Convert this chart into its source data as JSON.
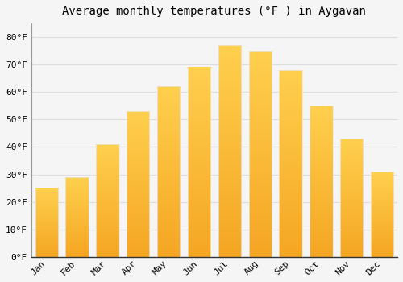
{
  "title": "Average monthly temperatures (°F ) in Aygavan",
  "months": [
    "Jan",
    "Feb",
    "Mar",
    "Apr",
    "May",
    "Jun",
    "Jul",
    "Aug",
    "Sep",
    "Oct",
    "Nov",
    "Dec"
  ],
  "values": [
    25,
    29,
    41,
    53,
    62,
    69,
    77,
    75,
    68,
    55,
    43,
    31
  ],
  "bar_color_bottom": "#F5A623",
  "bar_color_top": "#FFD04E",
  "bar_edge_color": "#E8E8E8",
  "background_color": "#F5F5F5",
  "plot_bg_color": "#F5F5F5",
  "grid_color": "#DDDDDD",
  "ylim": [
    0,
    85
  ],
  "yticks": [
    0,
    10,
    20,
    30,
    40,
    50,
    60,
    70,
    80
  ],
  "ytick_labels": [
    "0°F",
    "10°F",
    "20°F",
    "30°F",
    "40°F",
    "50°F",
    "60°F",
    "70°F",
    "80°F"
  ],
  "title_fontsize": 10,
  "tick_fontsize": 8,
  "font_family": "monospace"
}
